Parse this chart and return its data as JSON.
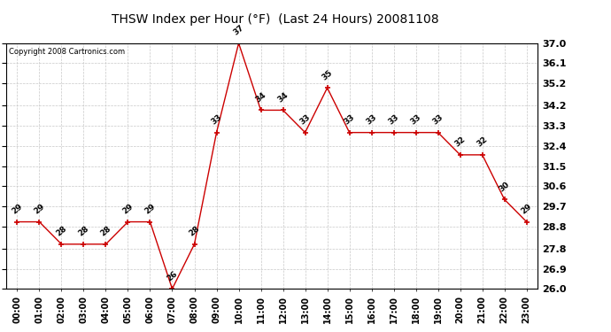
{
  "title": "THSW Index per Hour (°F)  (Last 24 Hours) 20081108",
  "copyright": "Copyright 2008 Cartronics.com",
  "hours": [
    "00:00",
    "01:00",
    "02:00",
    "03:00",
    "04:00",
    "05:00",
    "06:00",
    "07:00",
    "08:00",
    "09:00",
    "10:00",
    "11:00",
    "12:00",
    "13:00",
    "14:00",
    "15:00",
    "16:00",
    "17:00",
    "18:00",
    "19:00",
    "20:00",
    "21:00",
    "22:00",
    "23:00"
  ],
  "values": [
    29,
    29,
    28,
    28,
    28,
    29,
    29,
    26,
    28,
    33,
    37,
    34,
    34,
    33,
    35,
    33,
    33,
    33,
    33,
    33,
    32,
    32,
    30,
    29
  ],
  "ylim_min": 26.0,
  "ylim_max": 37.0,
  "yticks": [
    26.0,
    26.9,
    27.8,
    28.8,
    29.7,
    30.6,
    31.5,
    32.4,
    33.3,
    34.2,
    35.2,
    36.1,
    37.0
  ],
  "line_color": "#cc0000",
  "marker_color": "#cc0000",
  "grid_color": "#c8c8c8",
  "bg_color": "#ffffff",
  "title_fontsize": 10,
  "ytick_fontsize": 8,
  "xtick_fontsize": 7,
  "label_fontsize": 6.5
}
